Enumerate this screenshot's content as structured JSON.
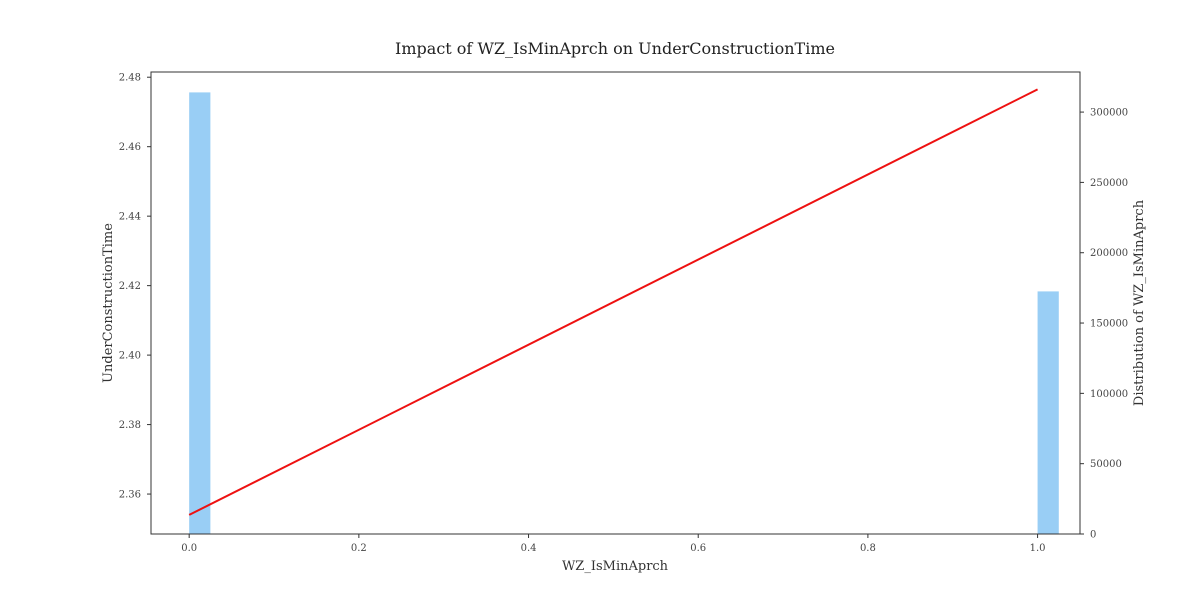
{
  "chart_data": {
    "type": "bar",
    "title": "Impact of WZ_IsMinAprch on UnderConstructionTime",
    "xlabel": "WZ_IsMinAprch",
    "ylabel": "UnderConstructionTime",
    "y2label": "Distribution of WZ_IsMinAprch",
    "xlim": [
      -0.045,
      1.05
    ],
    "ylim": [
      2.3485,
      2.4815
    ],
    "y2lim": [
      0,
      328500
    ],
    "x_ticks": [
      "0.0",
      "0.2",
      "0.4",
      "0.6",
      "0.8",
      "1.0"
    ],
    "x_tick_values": [
      0,
      0.2,
      0.4,
      0.6,
      0.8,
      1.0
    ],
    "y_ticks": [
      "2.36",
      "2.38",
      "2.40",
      "2.42",
      "2.44",
      "2.46",
      "2.48"
    ],
    "y_tick_values": [
      2.36,
      2.38,
      2.4,
      2.42,
      2.44,
      2.46,
      2.48
    ],
    "y2_ticks": [
      "0",
      "50000",
      "100000",
      "150000",
      "200000",
      "250000",
      "300000"
    ],
    "y2_tick_values": [
      0,
      50000,
      100000,
      150000,
      200000,
      250000,
      300000
    ],
    "bars": {
      "color": "#99cef5",
      "x": [
        0,
        1
      ],
      "values": [
        314000,
        172500
      ],
      "bin_width": 0.025
    },
    "line": {
      "color": "#ee1111",
      "x": [
        0,
        1
      ],
      "y": [
        2.354,
        2.4765
      ]
    },
    "grid": false
  }
}
